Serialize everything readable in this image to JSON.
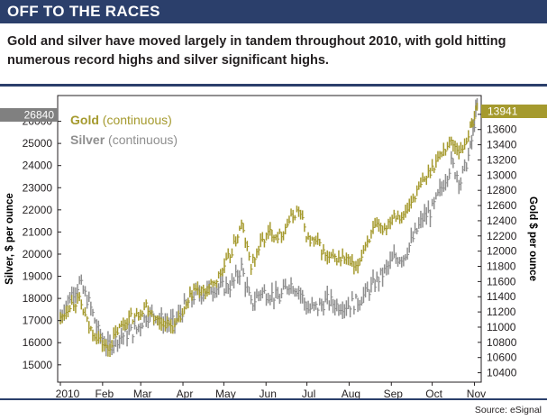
{
  "header": {
    "title": "OFF TO THE RACES",
    "subtitle": "Gold and silver have moved largely in tandem throughout 2010, with gold hitting numerous record highs and silver significant highs."
  },
  "source": "Source: eSignal",
  "colors": {
    "gold": "#a59a2e",
    "silver": "#8f8f8f",
    "accent": "#2b3f6b",
    "tag_silver_bg": "#808080",
    "tag_gold_bg": "#a59a2e"
  },
  "chart_data": {
    "type": "line",
    "chart_style": "ohlc-bars",
    "xlabel": "",
    "ylabel_left": "Silver, $ per ounce",
    "ylabel_right": "Gold $ per ounce",
    "x_ticks": [
      "2010",
      "Feb",
      "Mar",
      "Apr",
      "May",
      "Jun",
      "Jul",
      "Aug",
      "Sep",
      "Oct",
      "Nov"
    ],
    "y_left_ticks": [
      "15000",
      "16000",
      "17000",
      "18000",
      "19000",
      "20000",
      "21000",
      "22000",
      "23000",
      "24000",
      "25000",
      "26000"
    ],
    "y_right_ticks": [
      "10400",
      "10600",
      "10800",
      "11000",
      "11200",
      "11400",
      "11600",
      "11800",
      "12000",
      "12200",
      "12400",
      "12600",
      "12800",
      "13000",
      "13200",
      "13400",
      "13600",
      "13800"
    ],
    "ylim_left": [
      14300,
      27000
    ],
    "ylim_right": [
      10300,
      14000
    ],
    "last_value_left": "26840",
    "last_value_right": "13941",
    "legend_position": "top-left",
    "series": [
      {
        "name_bold": "Gold",
        "name_rest": " (continuous)",
        "axis": "right",
        "x": [
          "2010-01-01",
          "2010-01-08",
          "2010-01-15",
          "2010-01-22",
          "2010-01-29",
          "2010-02-05",
          "2010-02-12",
          "2010-02-19",
          "2010-02-26",
          "2010-03-05",
          "2010-03-12",
          "2010-03-19",
          "2010-03-26",
          "2010-04-02",
          "2010-04-09",
          "2010-04-16",
          "2010-04-23",
          "2010-04-30",
          "2010-05-07",
          "2010-05-14",
          "2010-05-21",
          "2010-05-28",
          "2010-06-04",
          "2010-06-11",
          "2010-06-18",
          "2010-06-25",
          "2010-07-02",
          "2010-07-09",
          "2010-07-16",
          "2010-07-23",
          "2010-07-30",
          "2010-08-06",
          "2010-08-13",
          "2010-08-20",
          "2010-08-27",
          "2010-09-03",
          "2010-09-10",
          "2010-09-17",
          "2010-09-24",
          "2010-10-01",
          "2010-10-08",
          "2010-10-15",
          "2010-10-22",
          "2010-10-29",
          "2010-11-03"
        ],
        "values": [
          11100,
          11300,
          11350,
          11000,
          10850,
          10700,
          10950,
          11100,
          11150,
          11300,
          11100,
          11050,
          11000,
          11200,
          11500,
          11450,
          11550,
          11750,
          12000,
          12350,
          11800,
          12100,
          12250,
          12200,
          12400,
          12550,
          12150,
          12100,
          11900,
          11900,
          11900,
          11750,
          12100,
          12300,
          12300,
          12500,
          12450,
          12700,
          12900,
          13100,
          13300,
          13450,
          13300,
          13600,
          13900
        ]
      },
      {
        "name_bold": "Silver",
        "name_rest": " (continuous)",
        "axis": "left",
        "x": [
          "2010-01-01",
          "2010-01-08",
          "2010-01-15",
          "2010-01-22",
          "2010-01-29",
          "2010-02-05",
          "2010-02-12",
          "2010-02-19",
          "2010-02-26",
          "2010-03-05",
          "2010-03-12",
          "2010-03-19",
          "2010-03-26",
          "2010-04-02",
          "2010-04-09",
          "2010-04-16",
          "2010-04-23",
          "2010-04-30",
          "2010-05-07",
          "2010-05-14",
          "2010-05-21",
          "2010-05-28",
          "2010-06-04",
          "2010-06-11",
          "2010-06-18",
          "2010-06-25",
          "2010-07-02",
          "2010-07-09",
          "2010-07-16",
          "2010-07-23",
          "2010-07-30",
          "2010-08-06",
          "2010-08-13",
          "2010-08-20",
          "2010-08-27",
          "2010-09-03",
          "2010-09-10",
          "2010-09-17",
          "2010-09-24",
          "2010-10-01",
          "2010-10-08",
          "2010-10-15",
          "2010-10-22",
          "2010-10-29",
          "2010-11-03"
        ],
        "values": [
          17200,
          18100,
          18700,
          17800,
          16500,
          15800,
          16200,
          16400,
          16600,
          17200,
          17300,
          16900,
          16900,
          17600,
          18100,
          18300,
          18500,
          18500,
          18600,
          19400,
          17700,
          18300,
          18200,
          18000,
          18700,
          18400,
          17500,
          17600,
          17900,
          17700,
          17700,
          17800,
          18200,
          18700,
          19200,
          19800,
          19900,
          20700,
          21600,
          22000,
          23000,
          24100,
          23300,
          24700,
          26800
        ]
      }
    ]
  }
}
